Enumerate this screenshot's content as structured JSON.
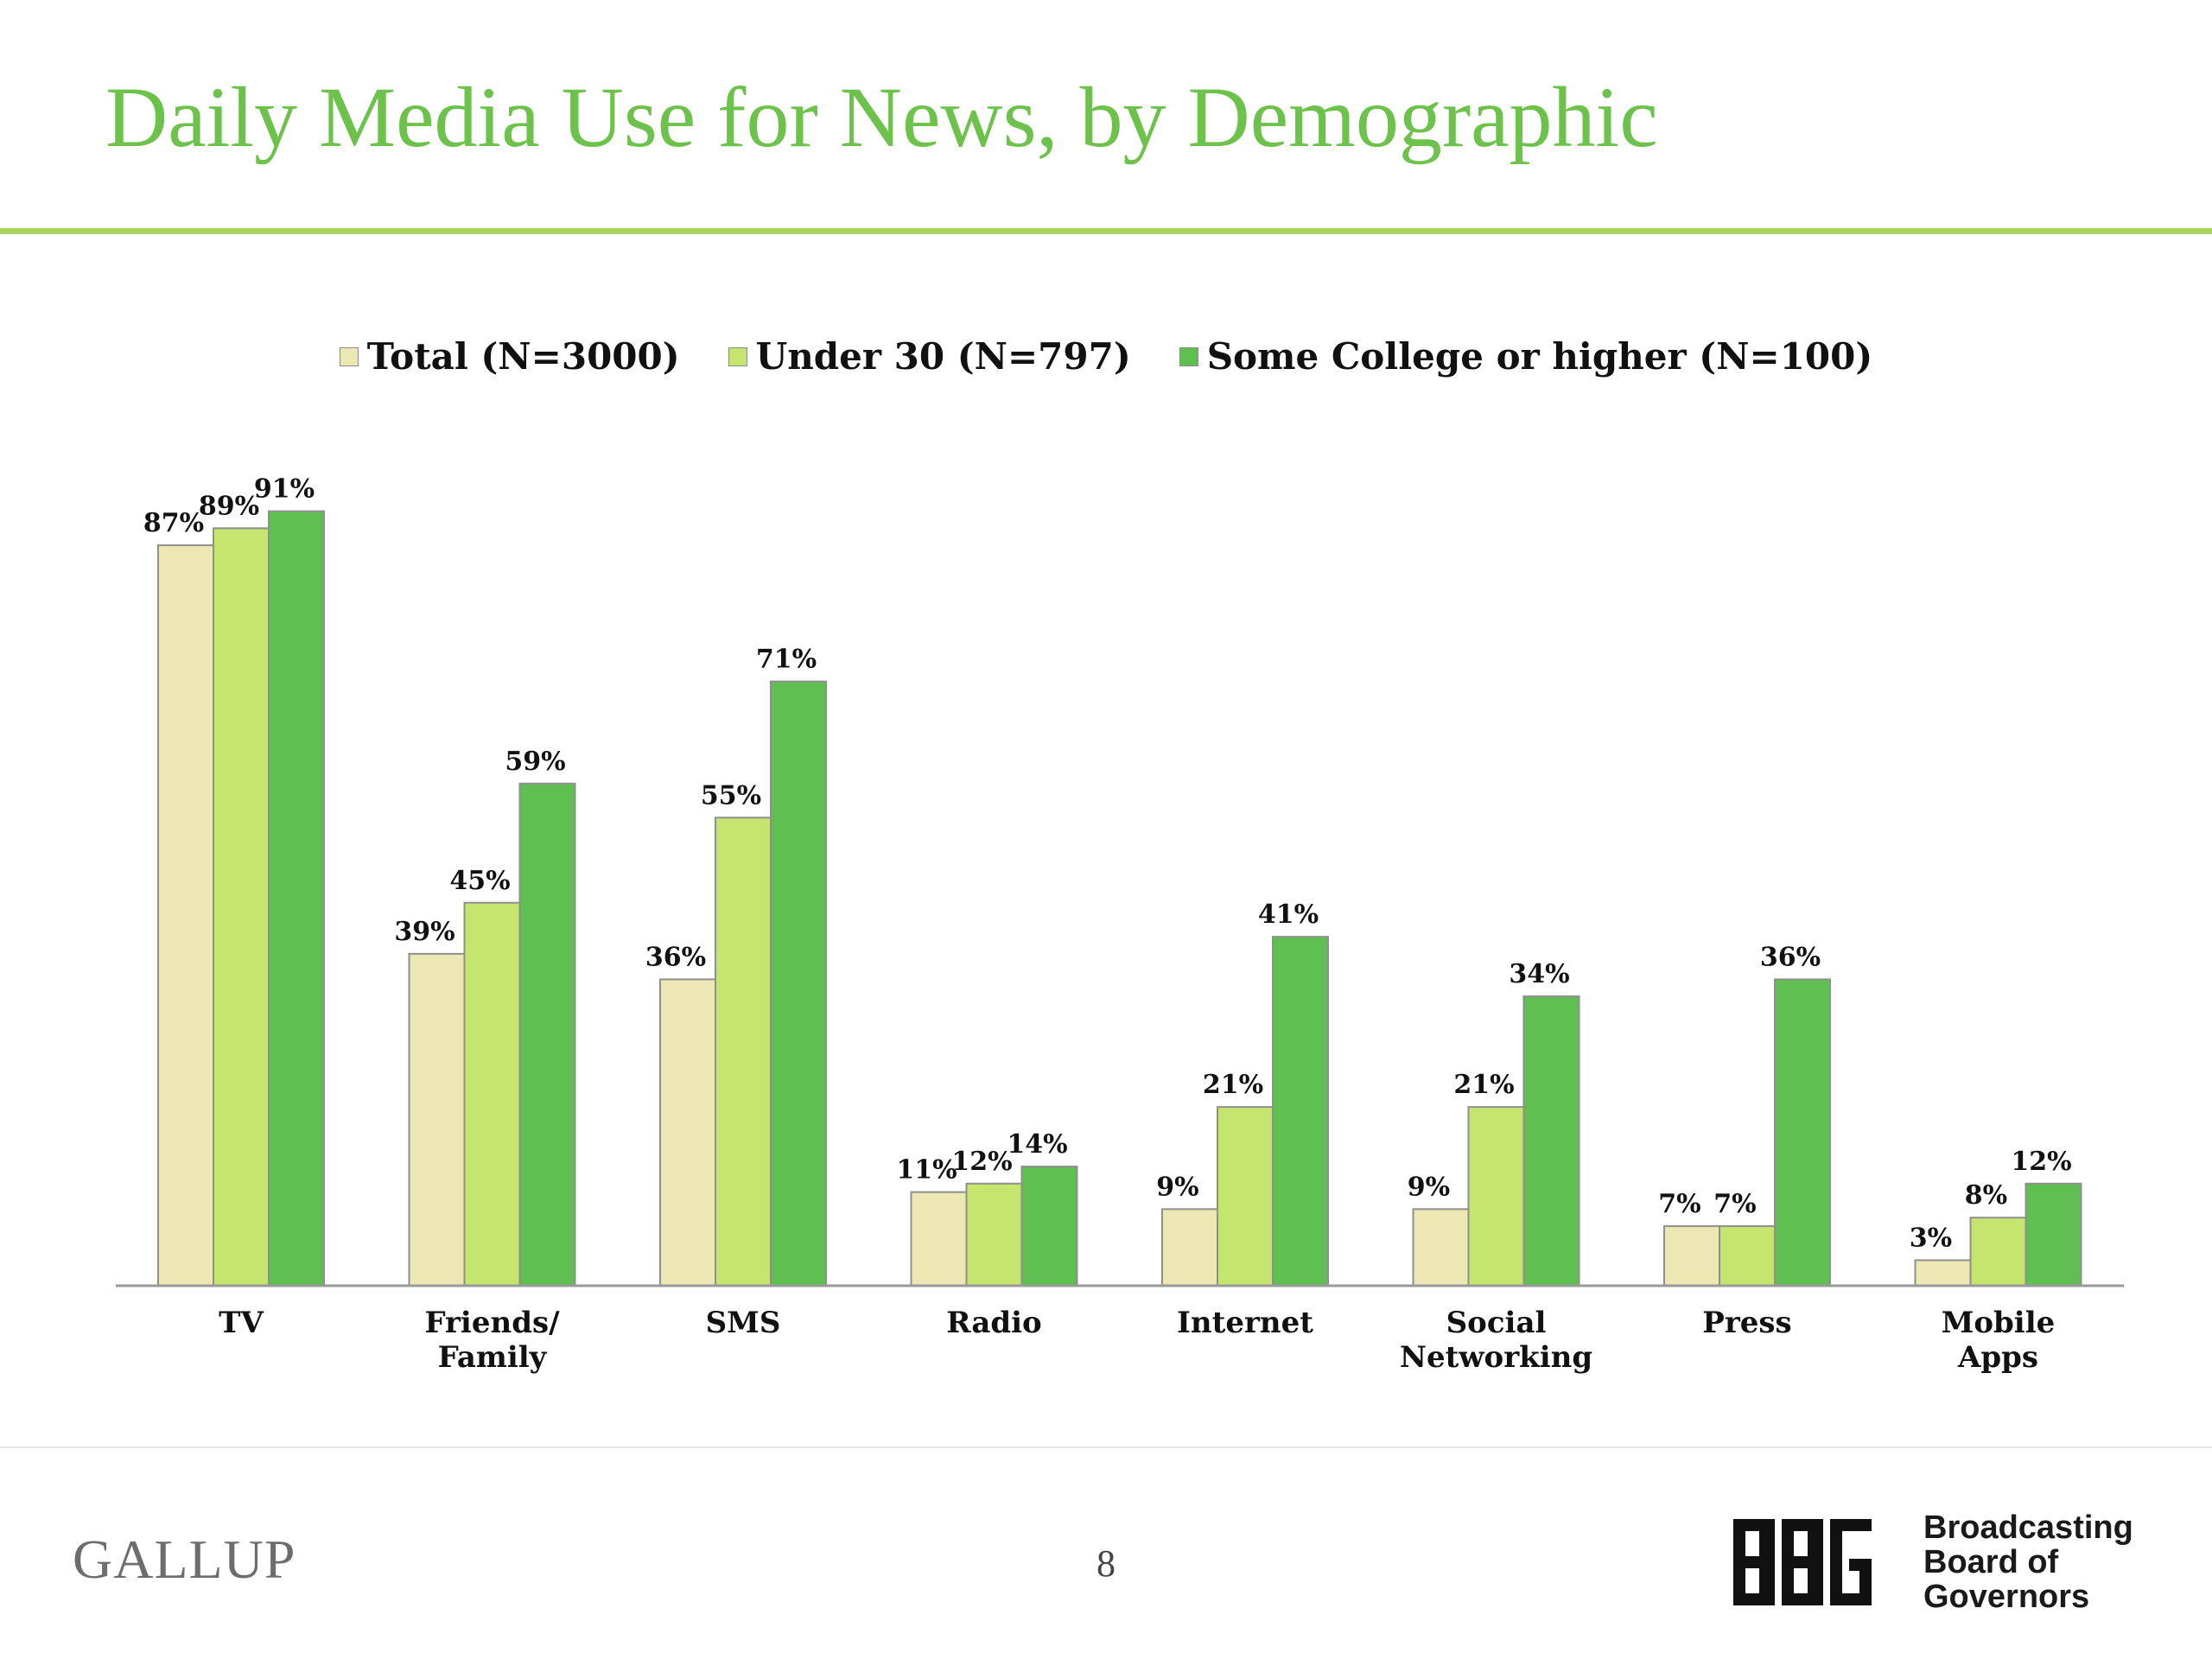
{
  "header": {
    "title": "Daily Media Use for News, by Demographic"
  },
  "colors": {
    "title": "#6cc24a",
    "rule": "#a6d45f",
    "axis": "#9a9a9a"
  },
  "chart_data": {
    "type": "bar",
    "categories": [
      "TV",
      "Friends/\nFamily",
      "SMS",
      "Radio",
      "Internet",
      "Social\nNetworking",
      "Press",
      "Mobile\nApps"
    ],
    "series": [
      {
        "name": "Total (N=3000)",
        "color": "#ece7b3",
        "values": [
          87,
          39,
          36,
          11,
          9,
          9,
          7,
          3
        ]
      },
      {
        "name": "Under 30 (N=797)",
        "color": "#c6e56e",
        "values": [
          89,
          45,
          55,
          12,
          21,
          21,
          7,
          8
        ]
      },
      {
        "name": "Some College or higher (N=100)",
        "color": "#5fbf50",
        "values": [
          91,
          59,
          71,
          14,
          41,
          34,
          36,
          12
        ]
      }
    ],
    "value_suffix": "%",
    "ylim": [
      0,
      100
    ],
    "grid": false,
    "legend_position": "top-center"
  },
  "footer": {
    "left_logo_text": "GALLUP",
    "page_number": "8",
    "right_logo_text": "Broadcasting\nBoard of\nGovernors"
  }
}
